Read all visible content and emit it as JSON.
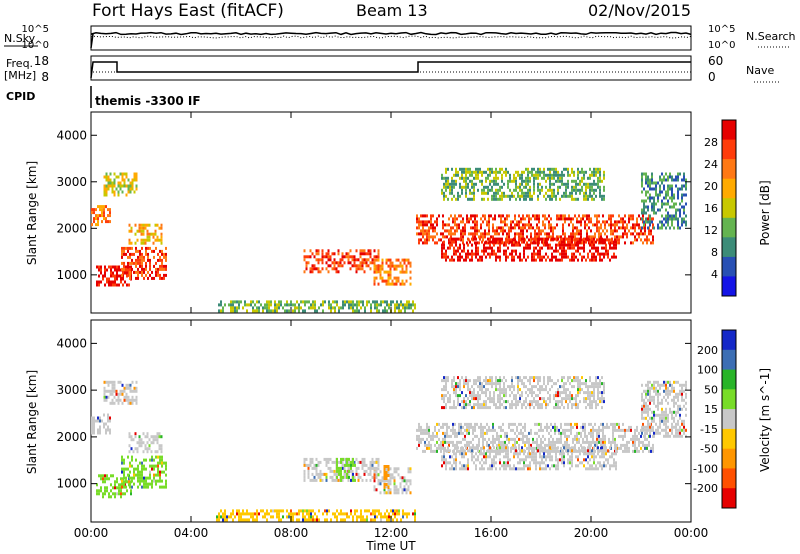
{
  "header": {
    "title": "Fort Hays East (fitACF)",
    "beam": "Beam 13",
    "date": "02/Nov/2015"
  },
  "status_panels": {
    "nsky_label": "N.Sky",
    "nsearch_label": "N.Search",
    "freq_label_1": "Freq.",
    "freq_label_2": "[MHz]",
    "nave_label": "Nave",
    "cpid_label": "CPID",
    "cpid_value": "themis -3300 IF",
    "noise_ticks": [
      "10^5",
      "10^0"
    ],
    "freq_ticks": [
      "18",
      "8"
    ],
    "nave_ticks": [
      "60",
      "0"
    ]
  },
  "colors": {
    "power_scale": [
      "#1414e6",
      "#2850b4",
      "#3c8c78",
      "#64b450",
      "#c8c800",
      "#ffaa00",
      "#ff7814",
      "#ff3c0a",
      "#e60000"
    ],
    "velocity_scale": [
      "#e60000",
      "#ff5000",
      "#ff9600",
      "#ffc800",
      "#c8c8c8",
      "#78dc28",
      "#28b428",
      "#3c6eb4",
      "#1428c8"
    ]
  },
  "chart_data": [
    {
      "type": "heatmap",
      "name": "power-panel",
      "xlabel": "Time UT",
      "ylabel": "Slant Range [km]",
      "colorbar_label": "Power [dB]",
      "colorbar_ticks": [
        "28",
        "24",
        "20",
        "16",
        "12",
        "8",
        "4"
      ],
      "x_ticks": [
        "00:00",
        "04:00",
        "08:00",
        "12:00",
        "16:00",
        "20:00",
        "00:00"
      ],
      "y_ticks": [
        "4000",
        "3000",
        "2000",
        "1000"
      ],
      "xlim": [
        0,
        24
      ],
      "ylim": [
        180,
        4500
      ],
      "regions": [
        {
          "t": [
            0.0,
            0.8
          ],
          "r": [
            2100,
            2500
          ],
          "level": 6
        },
        {
          "t": [
            0.5,
            1.8
          ],
          "r": [
            2700,
            3200
          ],
          "level": 4
        },
        {
          "t": [
            1.5,
            2.8
          ],
          "r": [
            1700,
            2100
          ],
          "level": 5
        },
        {
          "t": [
            0.2,
            1.6
          ],
          "r": [
            750,
            1200
          ],
          "level": 8
        },
        {
          "t": [
            1.2,
            3.0
          ],
          "r": [
            900,
            1600
          ],
          "level": 7
        },
        {
          "t": [
            8.5,
            11.5
          ],
          "r": [
            1050,
            1550
          ],
          "level": 7
        },
        {
          "t": [
            11.3,
            12.8
          ],
          "r": [
            800,
            1350
          ],
          "level": 6
        },
        {
          "t": [
            13.0,
            22.5
          ],
          "r": [
            1700,
            2300
          ],
          "level": 7
        },
        {
          "t": [
            14.0,
            21.0
          ],
          "r": [
            1300,
            1800
          ],
          "level": 8
        },
        {
          "t": [
            14.0,
            20.5
          ],
          "r": [
            2600,
            3300
          ],
          "level": 3
        },
        {
          "t": [
            22.0,
            23.8
          ],
          "r": [
            2000,
            3200
          ],
          "level": 2
        },
        {
          "t": [
            5.0,
            13.0
          ],
          "r": [
            200,
            450
          ],
          "level": 3
        }
      ]
    },
    {
      "type": "heatmap",
      "name": "velocity-panel",
      "xlabel": "Time UT",
      "ylabel": "Slant Range [km]",
      "colorbar_label": "Velocity [m s^-1]",
      "colorbar_ticks": [
        "200",
        "100",
        "50",
        "15",
        "-15",
        "-50",
        "-100",
        "-200"
      ],
      "x_ticks": [
        "00:00",
        "04:00",
        "08:00",
        "12:00",
        "16:00",
        "20:00",
        "00:00"
      ],
      "y_ticks": [
        "4000",
        "3000",
        "2000",
        "1000"
      ],
      "xlim": [
        0,
        24
      ],
      "ylim": [
        180,
        4500
      ],
      "regions": [
        {
          "t": [
            0.0,
            0.8
          ],
          "r": [
            2100,
            2500
          ],
          "cls": 4
        },
        {
          "t": [
            0.5,
            1.8
          ],
          "r": [
            2700,
            3200
          ],
          "cls": 4
        },
        {
          "t": [
            1.5,
            2.8
          ],
          "r": [
            1700,
            2100
          ],
          "cls": 4
        },
        {
          "t": [
            0.2,
            1.6
          ],
          "r": [
            750,
            1200
          ],
          "cls": 5
        },
        {
          "t": [
            1.2,
            3.0
          ],
          "r": [
            900,
            1600
          ],
          "cls": 5
        },
        {
          "t": [
            8.5,
            11.5
          ],
          "r": [
            1050,
            1550
          ],
          "cls": 4
        },
        {
          "t": [
            9.8,
            10.6
          ],
          "r": [
            1050,
            1550
          ],
          "cls": 5
        },
        {
          "t": [
            11.3,
            12.8
          ],
          "r": [
            800,
            1350
          ],
          "cls": 4
        },
        {
          "t": [
            11.7,
            11.9
          ],
          "r": [
            950,
            1400
          ],
          "cls": 2
        },
        {
          "t": [
            13.0,
            22.5
          ],
          "r": [
            1700,
            2300
          ],
          "cls": 4
        },
        {
          "t": [
            14.0,
            21.0
          ],
          "r": [
            1300,
            1800
          ],
          "cls": 4
        },
        {
          "t": [
            14.0,
            20.5
          ],
          "r": [
            2600,
            3300
          ],
          "cls": 4
        },
        {
          "t": [
            22.0,
            23.8
          ],
          "r": [
            2000,
            3200
          ],
          "cls": 4
        },
        {
          "t": [
            5.0,
            13.0
          ],
          "r": [
            200,
            450
          ],
          "cls": 3
        }
      ]
    }
  ]
}
